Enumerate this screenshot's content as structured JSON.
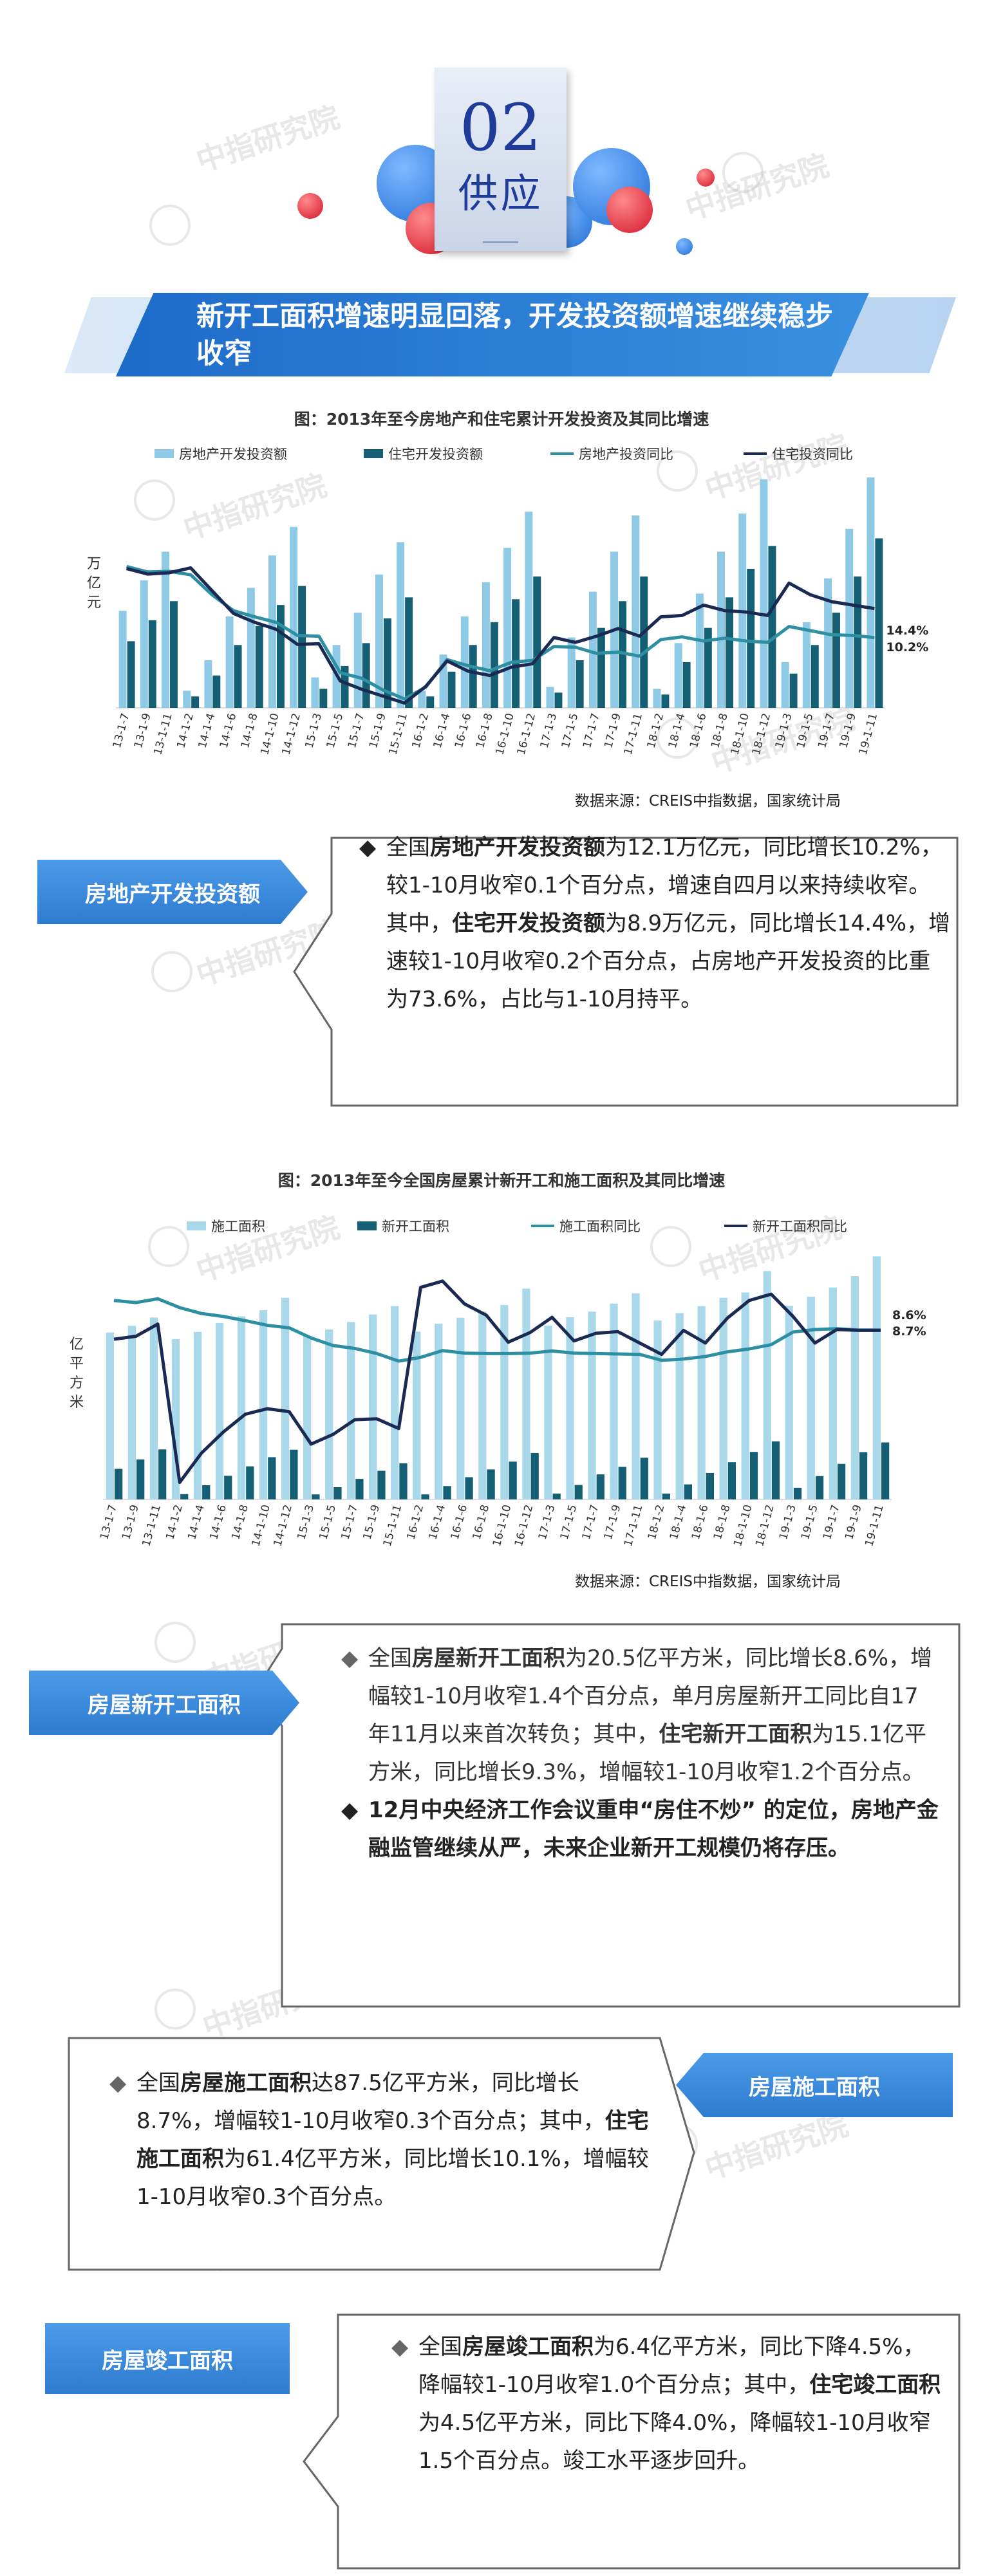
{
  "header": {
    "number": "02",
    "word": "供应"
  },
  "banner": {
    "title": "新开工面积增速明显回落，开发投资额增速继续稳步收窄"
  },
  "watermark": "中指研究院",
  "chart1": {
    "title": "图：2013年至今房地产和住宅累计开发投资及其同比增速",
    "unit": "万亿元",
    "source": "数据来源：CREIS中指数据，国家统计局",
    "end_labels": [
      "14.4%",
      "10.2%"
    ]
  },
  "chart2": {
    "title": "图：2013年至今全国房屋累计新开工和施工面积及其同比增速",
    "unit": "亿平方米",
    "source": "数据来源：CREIS中指数据，国家统计局",
    "end_labels": [
      "8.6%",
      "8.7%"
    ]
  },
  "section1": {
    "tag": "房地产开发投资额",
    "bullet": "◆",
    "p1_a": "全国",
    "p1_b": "房地产开发投资额",
    "p1_c": "为12.1万亿元，同比增长10.2%，较1-10月收窄0.1个百分点，增速自四月以来持续收窄。其中，",
    "p1_d": "住宅开发投资额",
    "p1_e": "为8.9万亿元，同比增长14.4%，增速较1-10月收窄0.2个百分点，占房地产开发投资的比重为73.6%，占比与1-10月持平。"
  },
  "section2": {
    "tag": "房屋新开工面积",
    "bullet1": "◆",
    "bullet2": "◆",
    "p1_a": "全国",
    "p1_b": "房屋新开工面积",
    "p1_c": "为20.5亿平方米，同比增长8.6%，增幅较1-10月收窄1.4个百分点，单月房屋新开工同比自17年11月以来首次转负；其中，",
    "p1_d": "住宅新开工面积",
    "p1_e": "为15.1亿平方米，同比增长9.3%，增幅较1-10月收窄1.2个百分点。",
    "p2": "12月中央经济工作会议重申“房住不炒” 的定位，房地产金融监管继续从严，未来企业新开工规模仍将存压。"
  },
  "section3": {
    "tag": "房屋施工面积",
    "bullet": "◆",
    "p1_a": "全国",
    "p1_b": "房屋施工面积",
    "p1_c": "达87.5亿平方米，同比增长8.7%，增幅较1-10月收窄0.3个百分点；其中，",
    "p1_d": "住宅施工面积",
    "p1_e": "为61.4亿平方米，同比增长10.1%，增幅较1-10月收窄0.3个百分点。"
  },
  "section4": {
    "tag": "房屋竣工面积",
    "bullet": "◆",
    "p1_a": "全国",
    "p1_b": "房屋竣工面积",
    "p1_c": "为6.4亿平方米，同比下降4.5%，降幅较1-10月收窄1.0个百分点；其中，",
    "p1_d": "住宅竣工面积",
    "p1_e": "为4.5亿平方米，同比下降4.0%，降幅较1-10月收窄1.5个百分点。竣工水平逐步回升。"
  },
  "chart_data": [
    {
      "type": "bar",
      "title": "图：2013年至今房地产和住宅累计开发投资及其同比增速",
      "ylabel": "万亿元",
      "x": [
        "13-1-7",
        "13-1-9",
        "13-1-11",
        "14-1-2",
        "14-1-4",
        "14-1-6",
        "14-1-8",
        "14-1-10",
        "14-1-12",
        "15-1-3",
        "15-1-5",
        "15-1-7",
        "15-1-9",
        "15-1-11",
        "16-1-2",
        "16-1-4",
        "16-1-6",
        "16-1-8",
        "16-1-10",
        "16-1-12",
        "17-1-3",
        "17-1-5",
        "17-1-7",
        "17-1-9",
        "17-1-11",
        "18-1-2",
        "18-1-4",
        "18-1-6",
        "18-1-8",
        "18-1-10",
        "18-1-12",
        "19-1-3",
        "19-1-5",
        "19-1-7",
        "19-1-9",
        "19-1-11"
      ],
      "series": [
        {
          "name": "房地产开发投资额",
          "color": "#8ecae6",
          "values": [
            5.1,
            6.7,
            8.2,
            0.9,
            2.5,
            4.8,
            6.3,
            8.0,
            9.5,
            1.6,
            3.3,
            5.0,
            7.0,
            8.7,
            0.9,
            2.8,
            4.8,
            6.6,
            8.4,
            10.3,
            1.1,
            3.7,
            6.1,
            8.2,
            10.1,
            1.0,
            3.4,
            6.0,
            8.2,
            10.2,
            12.0,
            2.4,
            4.5,
            6.8,
            9.4,
            12.1
          ]
        },
        {
          "name": "住宅开发投资额",
          "color": "#145f73",
          "values": [
            3.5,
            4.6,
            5.6,
            0.6,
            1.7,
            3.3,
            4.3,
            5.4,
            6.4,
            1.0,
            2.2,
            3.4,
            4.7,
            5.8,
            0.6,
            1.9,
            3.3,
            4.5,
            5.7,
            6.9,
            0.8,
            2.5,
            4.2,
            5.6,
            6.9,
            0.7,
            2.4,
            4.2,
            5.8,
            7.3,
            8.5,
            1.8,
            3.3,
            5.0,
            6.9,
            8.9
          ]
        },
        {
          "name": "房地产投资同比",
          "color": "#2e8fa3",
          "values": [
            20.5,
            19.7,
            19.8,
            19.3,
            16.4,
            14.1,
            13.2,
            12.4,
            10.5,
            10.4,
            5.1,
            4.3,
            2.6,
            1.3,
            3.0,
            7.0,
            6.1,
            5.4,
            6.6,
            6.9,
            8.9,
            8.8,
            7.9,
            8.1,
            7.5,
            9.9,
            10.3,
            9.7,
            10.1,
            9.7,
            9.5,
            11.8,
            11.2,
            10.6,
            10.5,
            10.2
          ]
        },
        {
          "name": "住宅投资同比",
          "color": "#1b2a52",
          "values": [
            20.2,
            19.4,
            19.6,
            20.3,
            17.0,
            13.7,
            12.4,
            11.4,
            9.2,
            9.3,
            3.9,
            2.7,
            1.7,
            0.7,
            3.1,
            6.8,
            5.3,
            4.7,
            5.9,
            6.4,
            10.2,
            9.5,
            10.4,
            11.5,
            10.4,
            13.2,
            13.4,
            14.9,
            14.1,
            13.9,
            13.4,
            18.1,
            16.4,
            15.4,
            14.9,
            14.4
          ]
        }
      ]
    },
    {
      "type": "bar",
      "title": "图：2013年至今全国房屋累计新开工和施工面积及其同比增速",
      "ylabel": "亿平方米",
      "x": [
        "13-1-7",
        "13-1-9",
        "13-1-11",
        "14-1-2",
        "14-1-4",
        "14-1-6",
        "14-1-8",
        "14-1-10",
        "14-1-12",
        "15-1-3",
        "15-1-5",
        "15-1-7",
        "15-1-9",
        "15-1-11",
        "16-1-2",
        "16-1-4",
        "16-1-6",
        "16-1-8",
        "16-1-10",
        "16-1-12",
        "17-1-3",
        "17-1-5",
        "17-1-7",
        "17-1-9",
        "17-1-11",
        "18-1-2",
        "18-1-4",
        "18-1-6",
        "18-1-8",
        "18-1-10",
        "18-1-12",
        "19-1-3",
        "19-1-5",
        "19-1-7",
        "19-1-9",
        "19-1-11"
      ],
      "series": [
        {
          "name": "施工面积",
          "color": "#a8d8ea",
          "values": [
            60.1,
            62.5,
            65.5,
            57.7,
            60.3,
            63.5,
            65.9,
            68.1,
            72.6,
            58.9,
            61.2,
            63.9,
            66.6,
            69.6,
            60.4,
            63.3,
            65.4,
            67.6,
            70.0,
            75.9,
            62.6,
            65.6,
            67.6,
            70.5,
            74.2,
            64.4,
            67.1,
            69.6,
            72.6,
            74.5,
            82.2,
            69.7,
            73.0,
            76.3,
            80.4,
            87.5
          ]
        },
        {
          "name": "新开工面积",
          "color": "#145f73",
          "values": [
            11.0,
            14.4,
            18.0,
            1.9,
            5.1,
            8.5,
            11.9,
            15.2,
            17.9,
            1.8,
            4.4,
            7.4,
            10.3,
            13.0,
            1.8,
            4.8,
            8.0,
            10.8,
            13.6,
            16.7,
            2.1,
            5.2,
            9.0,
            11.7,
            15.0,
            2.1,
            5.4,
            9.5,
            13.4,
            17.1,
            20.9,
            4.2,
            8.4,
            12.8,
            17.0,
            20.5
          ]
        },
        {
          "name": "施工面积同比",
          "color": "#2e8fa3",
          "values": [
            15.7,
            15.2,
            16.1,
            14.0,
            12.6,
            11.9,
            10.9,
            9.8,
            9.2,
            6.8,
            5.0,
            4.3,
            3.1,
            1.3,
            2.2,
            3.8,
            3.2,
            3.1,
            3.1,
            3.2,
            3.7,
            3.2,
            3.1,
            3.0,
            2.9,
            1.5,
            1.8,
            2.4,
            3.5,
            4.2,
            5.2,
            8.2,
            8.8,
            9.0,
            8.7,
            8.7
          ]
        },
        {
          "name": "新开工面积同比",
          "color": "#1b2a52",
          "values": [
            6.5,
            7.2,
            10.1,
            -27.5,
            -20.5,
            -15.5,
            -11.3,
            -10.0,
            -10.7,
            -18.4,
            -16.1,
            -12.6,
            -12.4,
            -14.7,
            18.8,
            20.3,
            14.9,
            12.2,
            5.8,
            8.1,
            11.7,
            6.1,
            7.9,
            8.3,
            5.6,
            2.9,
            8.6,
            5.6,
            11.5,
            15.7,
            17.2,
            11.9,
            5.6,
            8.8,
            8.6,
            8.6
          ]
        }
      ]
    }
  ]
}
